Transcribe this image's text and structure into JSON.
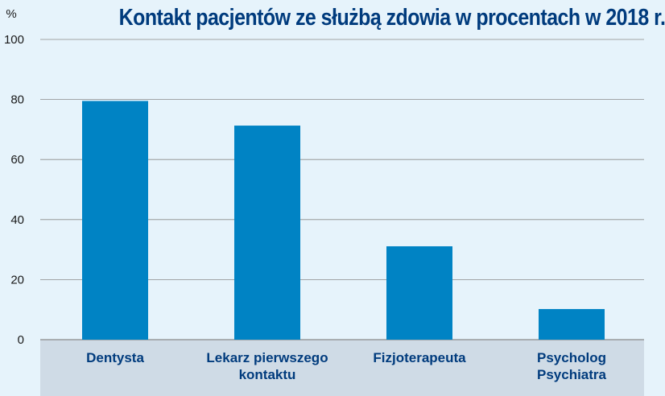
{
  "chart_data": {
    "type": "bar",
    "title": "Kontakt pacjentów ze służbą zdowia w procentach w 2018 r.",
    "ylabel": "%",
    "xlabel": "",
    "ylim": [
      0,
      100
    ],
    "yticks": [
      0,
      20,
      40,
      60,
      80,
      100
    ],
    "categories": [
      [
        "Dentysta"
      ],
      [
        "Lekarz pierwszego",
        "kontaktu"
      ],
      [
        "Fizjoterapeuta"
      ],
      [
        "Psycholog",
        "Psychiatra"
      ]
    ],
    "values": [
      79.5,
      71.3,
      31.1,
      10.2
    ],
    "grid": true,
    "colors": {
      "bar": "#0083c4",
      "background": "#e6f3fb",
      "category_band": "#cfdbe6",
      "gridline": "#8a8a8a",
      "title": "#003b7d"
    }
  }
}
